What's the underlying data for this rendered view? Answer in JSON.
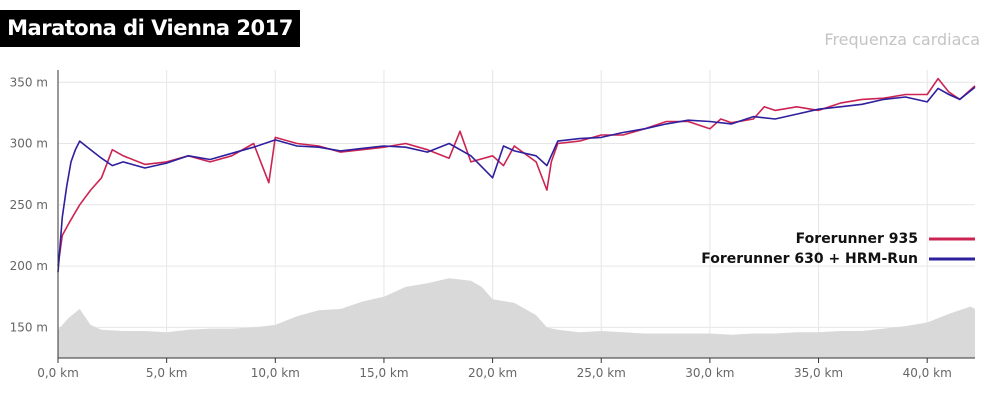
{
  "title": "Maratona di Vienna 2017",
  "subtitle": "Frequenza cardiaca",
  "colors": {
    "series_935": "#cc2452",
    "series_630": "#2d1f9e",
    "elevation": "#d9d9d9",
    "grid": "#e6e6e6",
    "axis": "#333333"
  },
  "chart_data": {
    "type": "line",
    "xlabel": "",
    "ylabel": "",
    "xlim": [
      0,
      42.2
    ],
    "ylim": [
      125,
      360
    ],
    "x_ticks": [
      "0,0 km",
      "5,0 km",
      "10,0 km",
      "15,0 km",
      "20,0 km",
      "25,0 km",
      "30,0 km",
      "35,0 km",
      "40,0 km"
    ],
    "y_ticks": [
      "150 m",
      "200 m",
      "250 m",
      "300 m",
      "350 m"
    ],
    "grid": true,
    "legend_position": "right",
    "series": [
      {
        "name": "Forerunner 935",
        "x": [
          0,
          0.2,
          0.5,
          1.0,
          1.5,
          2.0,
          2.5,
          3.0,
          4.0,
          5.0,
          6.0,
          7.0,
          8.0,
          9.0,
          9.7,
          10.0,
          11.0,
          12.0,
          13.0,
          14.0,
          15.0,
          16.0,
          17.0,
          18.0,
          18.5,
          19.0,
          20.0,
          20.5,
          21.0,
          22.0,
          22.5,
          22.7,
          23.0,
          24.0,
          25.0,
          26.0,
          27.0,
          28.0,
          29.0,
          30.0,
          30.5,
          31.0,
          32.0,
          32.5,
          33.0,
          34.0,
          35.0,
          36.0,
          37.0,
          38.0,
          39.0,
          40.0,
          40.5,
          41.0,
          41.5,
          42.2
        ],
        "values": [
          200,
          225,
          235,
          250,
          262,
          272,
          295,
          290,
          283,
          285,
          290,
          285,
          290,
          300,
          268,
          305,
          300,
          298,
          293,
          295,
          297,
          300,
          295,
          288,
          310,
          285,
          290,
          282,
          298,
          285,
          262,
          285,
          300,
          302,
          307,
          307,
          312,
          318,
          318,
          312,
          320,
          317,
          320,
          330,
          327,
          330,
          327,
          333,
          336,
          337,
          340,
          340,
          353,
          342,
          336,
          347
        ]
      },
      {
        "name": "Forerunner 630 + HRM-Run",
        "x": [
          0,
          0.2,
          0.4,
          0.6,
          0.8,
          1.0,
          1.5,
          2.0,
          2.5,
          3.0,
          4.0,
          5.0,
          6.0,
          7.0,
          8.0,
          9.0,
          10.0,
          11.0,
          12.0,
          13.0,
          14.0,
          15.0,
          16.0,
          17.0,
          18.0,
          19.0,
          20.0,
          20.5,
          21.0,
          22.0,
          22.5,
          23.0,
          24.0,
          25.0,
          26.0,
          27.0,
          28.0,
          29.0,
          30.0,
          31.0,
          32.0,
          33.0,
          34.0,
          35.0,
          36.0,
          37.0,
          38.0,
          39.0,
          40.0,
          40.5,
          41.0,
          41.5,
          42.2
        ],
        "values": [
          195,
          240,
          265,
          285,
          295,
          302,
          295,
          288,
          282,
          285,
          280,
          284,
          290,
          287,
          292,
          297,
          303,
          298,
          297,
          294,
          296,
          298,
          297,
          293,
          300,
          290,
          272,
          298,
          294,
          290,
          282,
          302,
          304,
          305,
          309,
          312,
          316,
          319,
          318,
          316,
          322,
          320,
          324,
          328,
          330,
          332,
          336,
          338,
          334,
          345,
          340,
          336,
          346
        ]
      },
      {
        "name": "",
        "type": "area",
        "x": [
          0,
          0.5,
          1.0,
          1.5,
          2.0,
          3.0,
          4.0,
          5.0,
          6.0,
          7.0,
          8.0,
          9.0,
          10.0,
          11.0,
          12.0,
          13.0,
          14.0,
          15.0,
          16.0,
          17.0,
          18.0,
          19.0,
          19.5,
          20.0,
          21.0,
          22.0,
          22.5,
          23.0,
          24.0,
          25.0,
          26.0,
          27.0,
          28.0,
          29.0,
          30.0,
          31.0,
          32.0,
          33.0,
          34.0,
          35.0,
          36.0,
          37.0,
          38.0,
          39.0,
          40.0,
          41.0,
          42.0,
          42.2
        ],
        "values": [
          148,
          158,
          165,
          152,
          148,
          147,
          147,
          146,
          148,
          149,
          149,
          150,
          152,
          159,
          164,
          165,
          171,
          175,
          183,
          186,
          190,
          188,
          183,
          173,
          170,
          160,
          150,
          148,
          146,
          147,
          146,
          145,
          145,
          145,
          145,
          144,
          145,
          145,
          146,
          146,
          147,
          147,
          149,
          151,
          154,
          161,
          167,
          165
        ]
      }
    ]
  }
}
